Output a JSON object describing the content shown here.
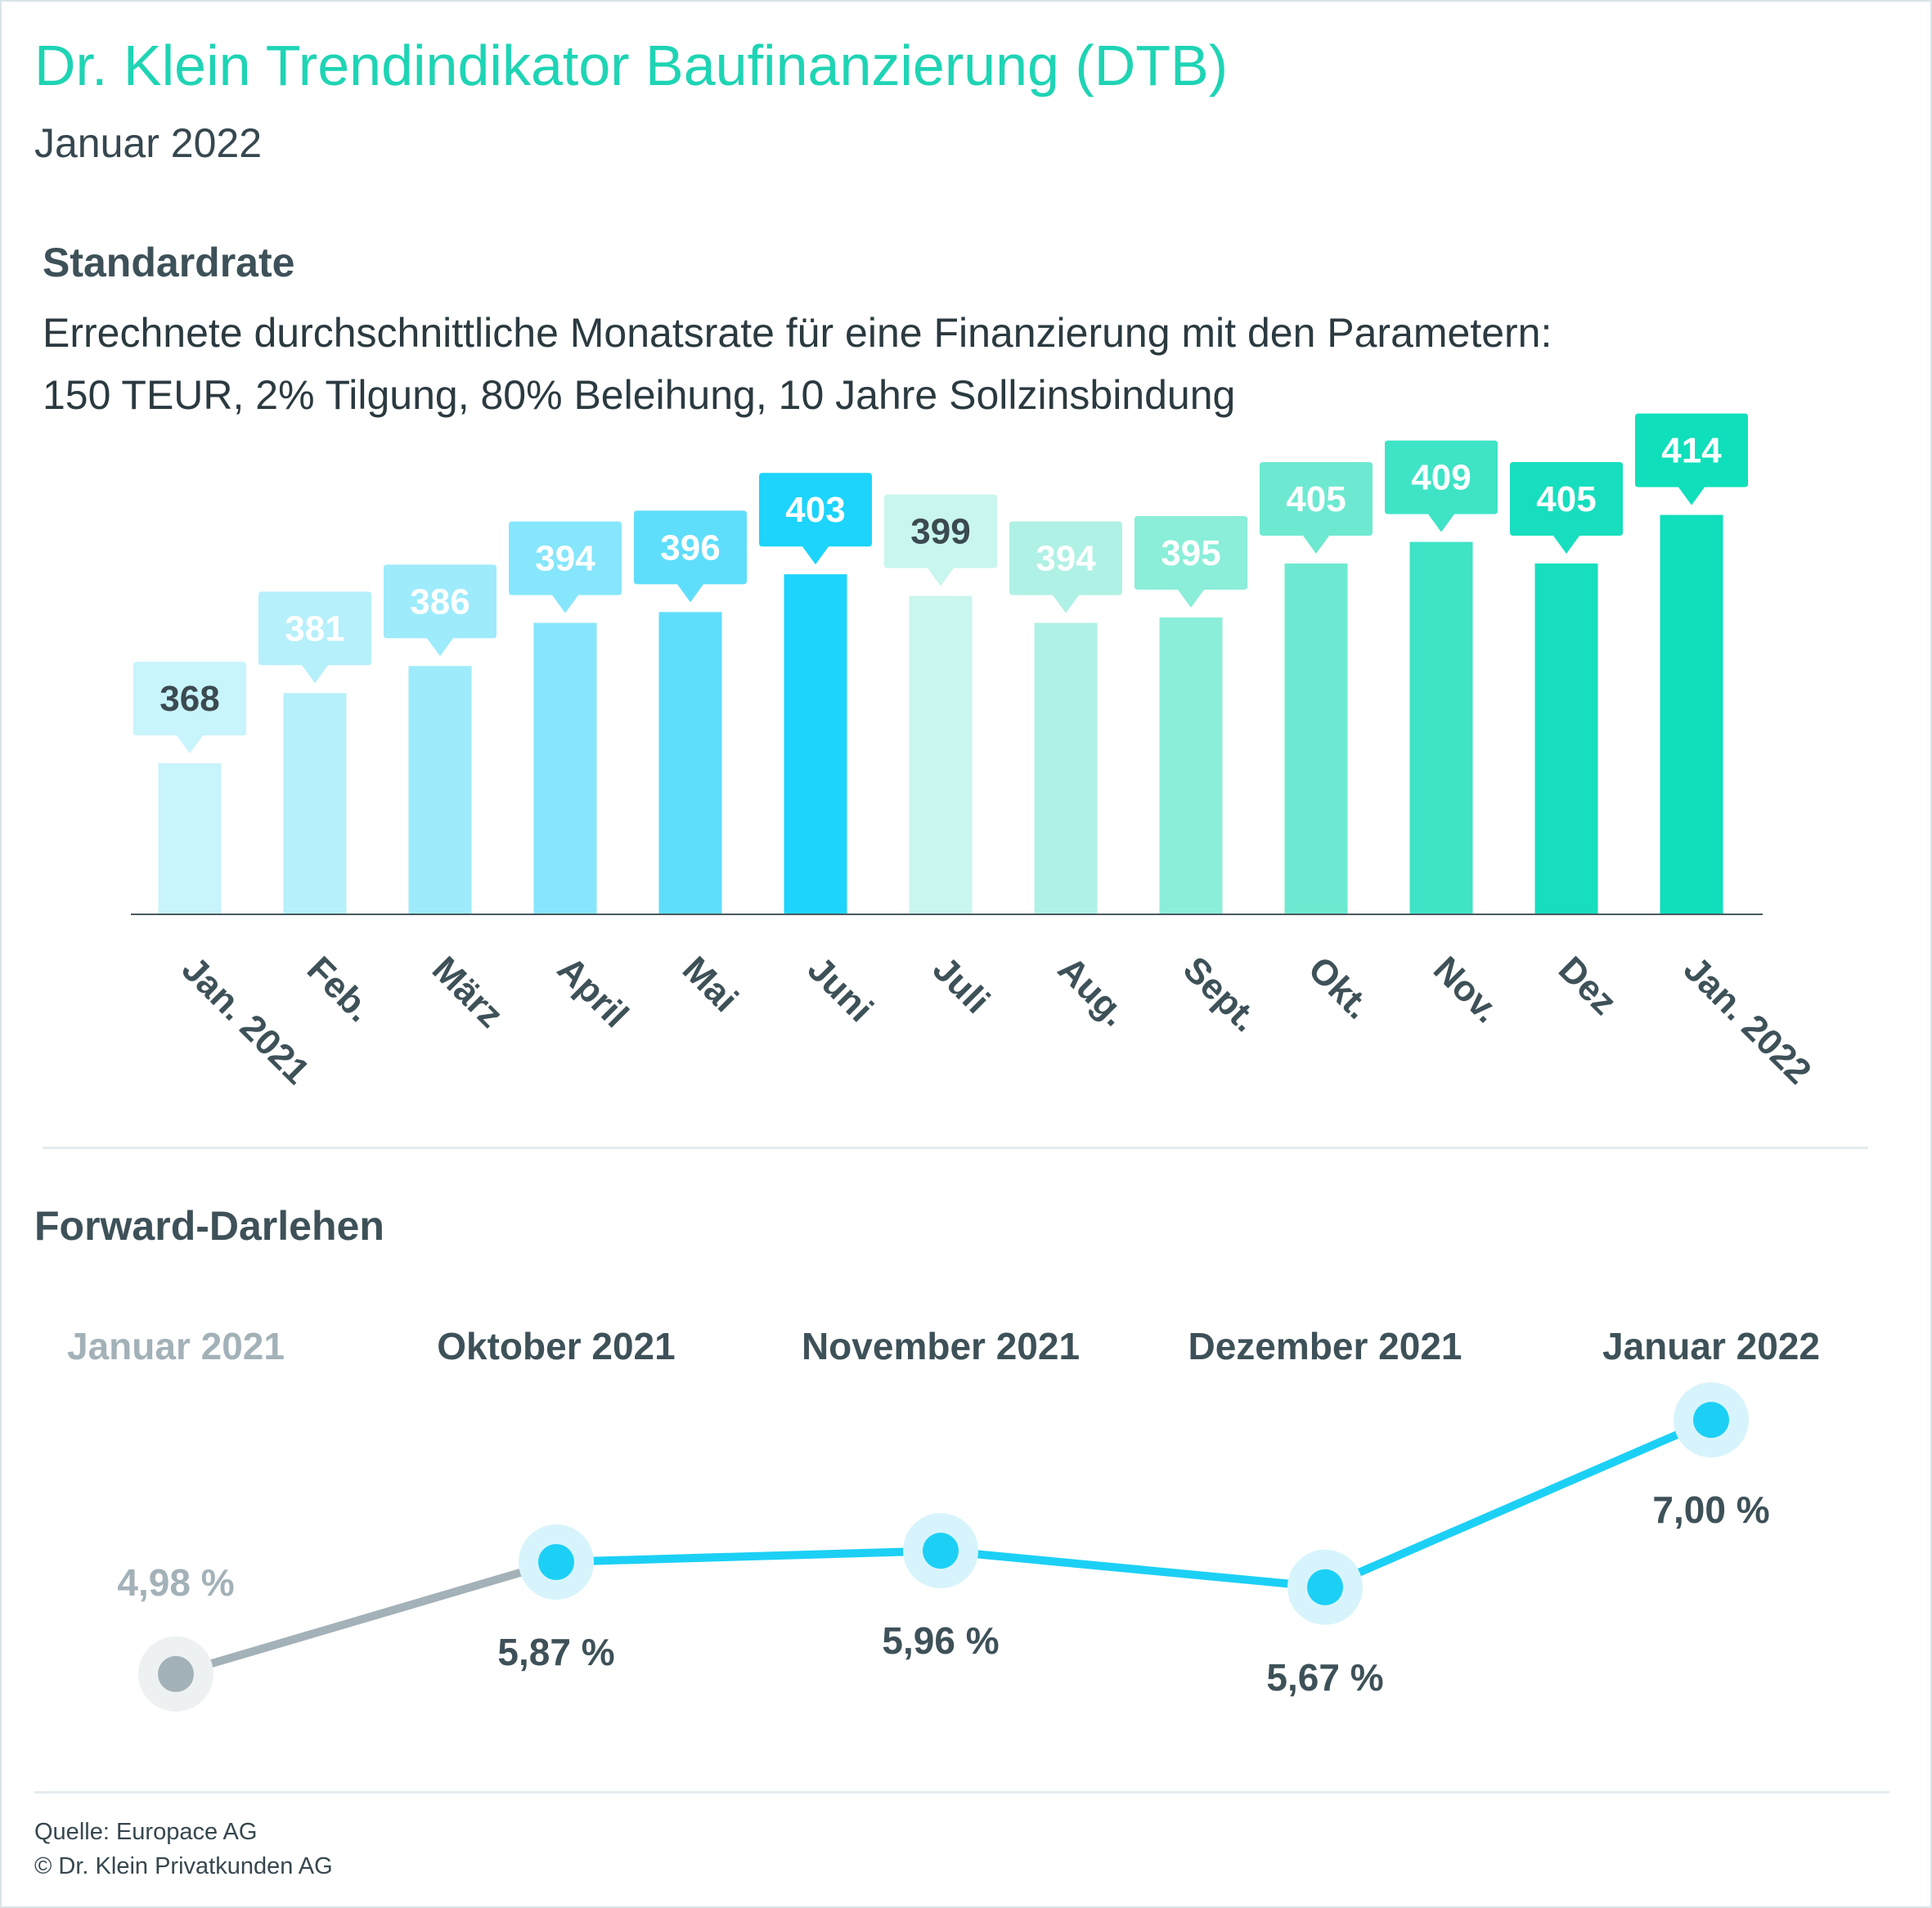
{
  "header": {
    "title": "Dr. Klein Trendindikator Baufinanzierung (DTB)",
    "subtitle": "Januar 2022"
  },
  "standardrate": {
    "heading": "Standardrate",
    "description_line1": "Errechnete durchschnittliche Monatsrate für eine Finanzierung mit den Parametern:",
    "description_line2": "150 TEUR, 2% Tilgung, 80% Beleihung, 10 Jahre Sollzinsbindung"
  },
  "forward": {
    "heading": "Forward-Darlehen"
  },
  "footer": {
    "source": "Quelle: Europace AG",
    "copyright": "© Dr. Klein Privatkunden AG"
  },
  "colors": {
    "title": "#1ed4b4",
    "forward_line": "#1cd0f5",
    "forward_past": "#a3b1b8"
  },
  "chart_data": [
    {
      "type": "bar",
      "categories": [
        "Jan. 2021",
        "Feb.",
        "März",
        "April",
        "Mai",
        "Juni",
        "Juli",
        "Aug.",
        "Sept.",
        "Okt.",
        "Nov.",
        "Dez",
        "Jan. 2022"
      ],
      "values": [
        368,
        381,
        386,
        394,
        396,
        403,
        399,
        394,
        395,
        405,
        409,
        405,
        414
      ],
      "data_labels": [
        "368",
        "381",
        "386",
        "394",
        "396",
        "403",
        "399",
        "394",
        "395",
        "405",
        "409",
        "405",
        "414"
      ],
      "bar_colors": [
        "#c8f4fb",
        "#b6f0fa",
        "#9eebfb",
        "#86e6fb",
        "#5fdefb",
        "#1cd4fc",
        "#c9f6ee",
        "#b0f1e5",
        "#8aeed9",
        "#6ee9d1",
        "#3fe3c6",
        "#17debe",
        "#0fdfba"
      ],
      "label_colors": [
        "#3b4a50",
        "#ffffff",
        "#ffffff",
        "#ffffff",
        "#ffffff",
        "#ffffff",
        "#3b4a50",
        "#ffffff",
        "#ffffff",
        "#ffffff",
        "#ffffff",
        "#ffffff",
        "#ffffff"
      ],
      "title": "Standardrate",
      "xlabel": "",
      "ylabel": "",
      "ylim": [
        340,
        420
      ],
      "grid": false,
      "legend": "none"
    },
    {
      "type": "line",
      "categories": [
        "Januar 2021",
        "Oktober 2021",
        "November 2021",
        "Dezember 2021",
        "Januar 2022"
      ],
      "values": [
        4.98,
        5.87,
        5.96,
        5.67,
        7.0
      ],
      "data_labels": [
        "4,98 %",
        "5,87 %",
        "5,96 %",
        "5,67 %",
        "7,00 %"
      ],
      "label_position": [
        "above",
        "below",
        "below",
        "below",
        "below"
      ],
      "title": "Forward-Darlehen",
      "xlabel": "",
      "ylabel": "",
      "ylim": [
        4.7,
        7.3
      ],
      "grid": false,
      "legend": "none"
    }
  ]
}
